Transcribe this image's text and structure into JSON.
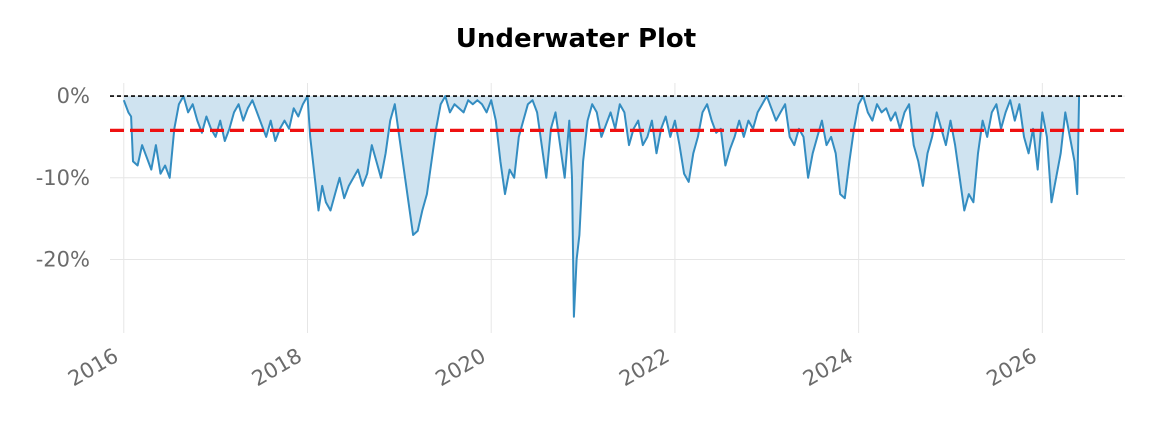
{
  "chart_data": {
    "type": "area",
    "title": "Underwater Plot",
    "xlabel": "",
    "ylabel": "",
    "x_ticks": [
      "2016",
      "2018",
      "2020",
      "2022",
      "2024",
      "2026"
    ],
    "y_ticks": [
      "0%",
      "-10%",
      "-20%"
    ],
    "xlim": [
      2015.85,
      2026.9
    ],
    "ylim": [
      -0.29,
      0.016
    ],
    "grid": true,
    "zero_line": {
      "value": 0.0,
      "color": "#000000",
      "style": "dashed"
    },
    "average_drawdown_line": {
      "value": -0.042,
      "color": "#ee1111",
      "style": "dashed"
    },
    "series": [
      {
        "line_color": "#348dc1",
        "fill_color": "#cfe3f0",
        "x": [
          2016.0,
          2016.05,
          2016.08,
          2016.1,
          2016.15,
          2016.2,
          2016.25,
          2016.3,
          2016.35,
          2016.4,
          2016.45,
          2016.5,
          2016.55,
          2016.6,
          2016.65,
          2016.7,
          2016.75,
          2016.8,
          2016.85,
          2016.9,
          2016.95,
          2017.0,
          2017.05,
          2017.1,
          2017.15,
          2017.2,
          2017.25,
          2017.3,
          2017.35,
          2017.4,
          2017.45,
          2017.5,
          2017.55,
          2017.6,
          2017.65,
          2017.7,
          2017.75,
          2017.8,
          2017.85,
          2017.9,
          2017.95,
          2018.0,
          2018.03,
          2018.08,
          2018.12,
          2018.16,
          2018.2,
          2018.25,
          2018.3,
          2018.35,
          2018.4,
          2018.45,
          2018.5,
          2018.55,
          2018.6,
          2018.65,
          2018.7,
          2018.75,
          2018.8,
          2018.85,
          2018.9,
          2018.95,
          2019.0,
          2019.05,
          2019.1,
          2019.15,
          2019.2,
          2019.25,
          2019.3,
          2019.35,
          2019.4,
          2019.45,
          2019.5,
          2019.55,
          2019.6,
          2019.65,
          2019.7,
          2019.75,
          2019.8,
          2019.85,
          2019.9,
          2019.95,
          2020.0,
          2020.05,
          2020.1,
          2020.15,
          2020.2,
          2020.25,
          2020.3,
          2020.35,
          2020.4,
          2020.45,
          2020.5,
          2020.55,
          2020.6,
          2020.65,
          2020.7,
          2020.75,
          2020.8,
          2020.85,
          2020.88,
          2020.9,
          2020.93,
          2020.96,
          2021.0,
          2021.05,
          2021.1,
          2021.15,
          2021.2,
          2021.25,
          2021.3,
          2021.35,
          2021.4,
          2021.45,
          2021.5,
          2021.55,
          2021.6,
          2021.65,
          2021.7,
          2021.75,
          2021.8,
          2021.85,
          2021.9,
          2021.95,
          2022.0,
          2022.05,
          2022.1,
          2022.15,
          2022.2,
          2022.25,
          2022.3,
          2022.35,
          2022.4,
          2022.45,
          2022.5,
          2022.55,
          2022.6,
          2022.65,
          2022.7,
          2022.75,
          2022.8,
          2022.85,
          2022.9,
          2022.95,
          2023.0,
          2023.05,
          2023.1,
          2023.15,
          2023.2,
          2023.25,
          2023.3,
          2023.35,
          2023.4,
          2023.45,
          2023.5,
          2023.55,
          2023.6,
          2023.65,
          2023.7,
          2023.75,
          2023.8,
          2023.85,
          2023.9,
          2023.95,
          2024.0,
          2024.05,
          2024.1,
          2024.15,
          2024.2,
          2024.25,
          2024.3,
          2024.35,
          2024.4,
          2024.45,
          2024.5,
          2024.55,
          2024.6,
          2024.65,
          2024.7,
          2024.75,
          2024.8,
          2024.85,
          2024.9,
          2024.95,
          2025.0,
          2025.05,
          2025.1,
          2025.15,
          2025.2,
          2025.25,
          2025.3,
          2025.35,
          2025.4,
          2025.45,
          2025.5,
          2025.55,
          2025.6,
          2025.65,
          2025.7,
          2025.75,
          2025.8,
          2025.85,
          2025.9,
          2025.95,
          2026.0,
          2026.05,
          2026.1,
          2026.15,
          2026.2,
          2026.25,
          2026.3,
          2026.35,
          2026.38,
          2026.4
        ],
        "y": [
          -0.005,
          -0.02,
          -0.025,
          -0.08,
          -0.085,
          -0.06,
          -0.075,
          -0.09,
          -0.06,
          -0.095,
          -0.085,
          -0.1,
          -0.04,
          -0.01,
          0.0,
          -0.02,
          -0.01,
          -0.03,
          -0.045,
          -0.025,
          -0.04,
          -0.05,
          -0.03,
          -0.055,
          -0.04,
          -0.02,
          -0.01,
          -0.03,
          -0.015,
          -0.005,
          -0.02,
          -0.035,
          -0.05,
          -0.03,
          -0.055,
          -0.04,
          -0.03,
          -0.04,
          -0.015,
          -0.025,
          -0.01,
          0.0,
          -0.05,
          -0.1,
          -0.14,
          -0.11,
          -0.13,
          -0.14,
          -0.12,
          -0.1,
          -0.125,
          -0.11,
          -0.1,
          -0.09,
          -0.11,
          -0.095,
          -0.06,
          -0.08,
          -0.1,
          -0.07,
          -0.03,
          -0.01,
          -0.05,
          -0.09,
          -0.13,
          -0.17,
          -0.165,
          -0.14,
          -0.12,
          -0.08,
          -0.04,
          -0.01,
          0.0,
          -0.02,
          -0.01,
          -0.015,
          -0.02,
          -0.005,
          -0.01,
          -0.005,
          -0.01,
          -0.02,
          -0.005,
          -0.03,
          -0.08,
          -0.12,
          -0.09,
          -0.1,
          -0.05,
          -0.03,
          -0.01,
          -0.005,
          -0.02,
          -0.06,
          -0.1,
          -0.04,
          -0.02,
          -0.06,
          -0.1,
          -0.03,
          -0.1,
          -0.27,
          -0.2,
          -0.17,
          -0.08,
          -0.03,
          -0.01,
          -0.02,
          -0.05,
          -0.035,
          -0.02,
          -0.04,
          -0.01,
          -0.02,
          -0.06,
          -0.04,
          -0.03,
          -0.06,
          -0.05,
          -0.03,
          -0.07,
          -0.04,
          -0.025,
          -0.05,
          -0.03,
          -0.06,
          -0.095,
          -0.105,
          -0.07,
          -0.05,
          -0.02,
          -0.01,
          -0.03,
          -0.045,
          -0.04,
          -0.085,
          -0.065,
          -0.05,
          -0.03,
          -0.05,
          -0.03,
          -0.04,
          -0.02,
          -0.01,
          0.0,
          -0.015,
          -0.03,
          -0.02,
          -0.01,
          -0.05,
          -0.06,
          -0.04,
          -0.05,
          -0.1,
          -0.07,
          -0.05,
          -0.03,
          -0.06,
          -0.05,
          -0.07,
          -0.12,
          -0.125,
          -0.08,
          -0.04,
          -0.01,
          0.0,
          -0.02,
          -0.03,
          -0.01,
          -0.02,
          -0.015,
          -0.03,
          -0.02,
          -0.04,
          -0.02,
          -0.01,
          -0.06,
          -0.08,
          -0.11,
          -0.07,
          -0.05,
          -0.02,
          -0.04,
          -0.06,
          -0.03,
          -0.06,
          -0.1,
          -0.14,
          -0.12,
          -0.13,
          -0.07,
          -0.03,
          -0.05,
          -0.02,
          -0.01,
          -0.04,
          -0.02,
          -0.005,
          -0.03,
          -0.01,
          -0.05,
          -0.07,
          -0.04,
          -0.09,
          -0.02,
          -0.05,
          -0.13,
          -0.1,
          -0.07,
          -0.02,
          -0.05,
          -0.08,
          -0.12,
          0.0
        ]
      }
    ]
  }
}
